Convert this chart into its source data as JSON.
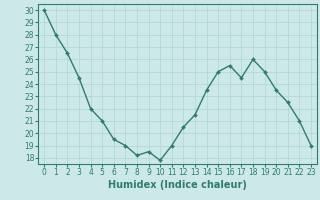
{
  "x": [
    0,
    1,
    2,
    3,
    4,
    5,
    6,
    7,
    8,
    9,
    10,
    11,
    12,
    13,
    14,
    15,
    16,
    17,
    18,
    19,
    20,
    21,
    22,
    23
  ],
  "y": [
    30,
    28,
    26.5,
    24.5,
    22,
    21,
    19.5,
    19,
    18.2,
    18.5,
    17.8,
    19,
    20.5,
    21.5,
    23.5,
    25,
    25.5,
    24.5,
    26,
    25,
    23.5,
    22.5,
    21,
    19
  ],
  "line_color": "#2e7d6e",
  "marker": "D",
  "marker_size": 2.0,
  "bg_color": "#cce8e8",
  "grid_color": "#b0d4d4",
  "xlabel": "Humidex (Indice chaleur)",
  "ylabel": "",
  "xlim": [
    -0.5,
    23.5
  ],
  "ylim": [
    17.5,
    30.5
  ],
  "yticks": [
    18,
    19,
    20,
    21,
    22,
    23,
    24,
    25,
    26,
    27,
    28,
    29,
    30
  ],
  "xticks": [
    0,
    1,
    2,
    3,
    4,
    5,
    6,
    7,
    8,
    9,
    10,
    11,
    12,
    13,
    14,
    15,
    16,
    17,
    18,
    19,
    20,
    21,
    22,
    23
  ],
  "tick_label_fontsize": 5.5,
  "xlabel_fontsize": 7,
  "spine_color": "#2e7d6e",
  "linewidth": 1.0
}
